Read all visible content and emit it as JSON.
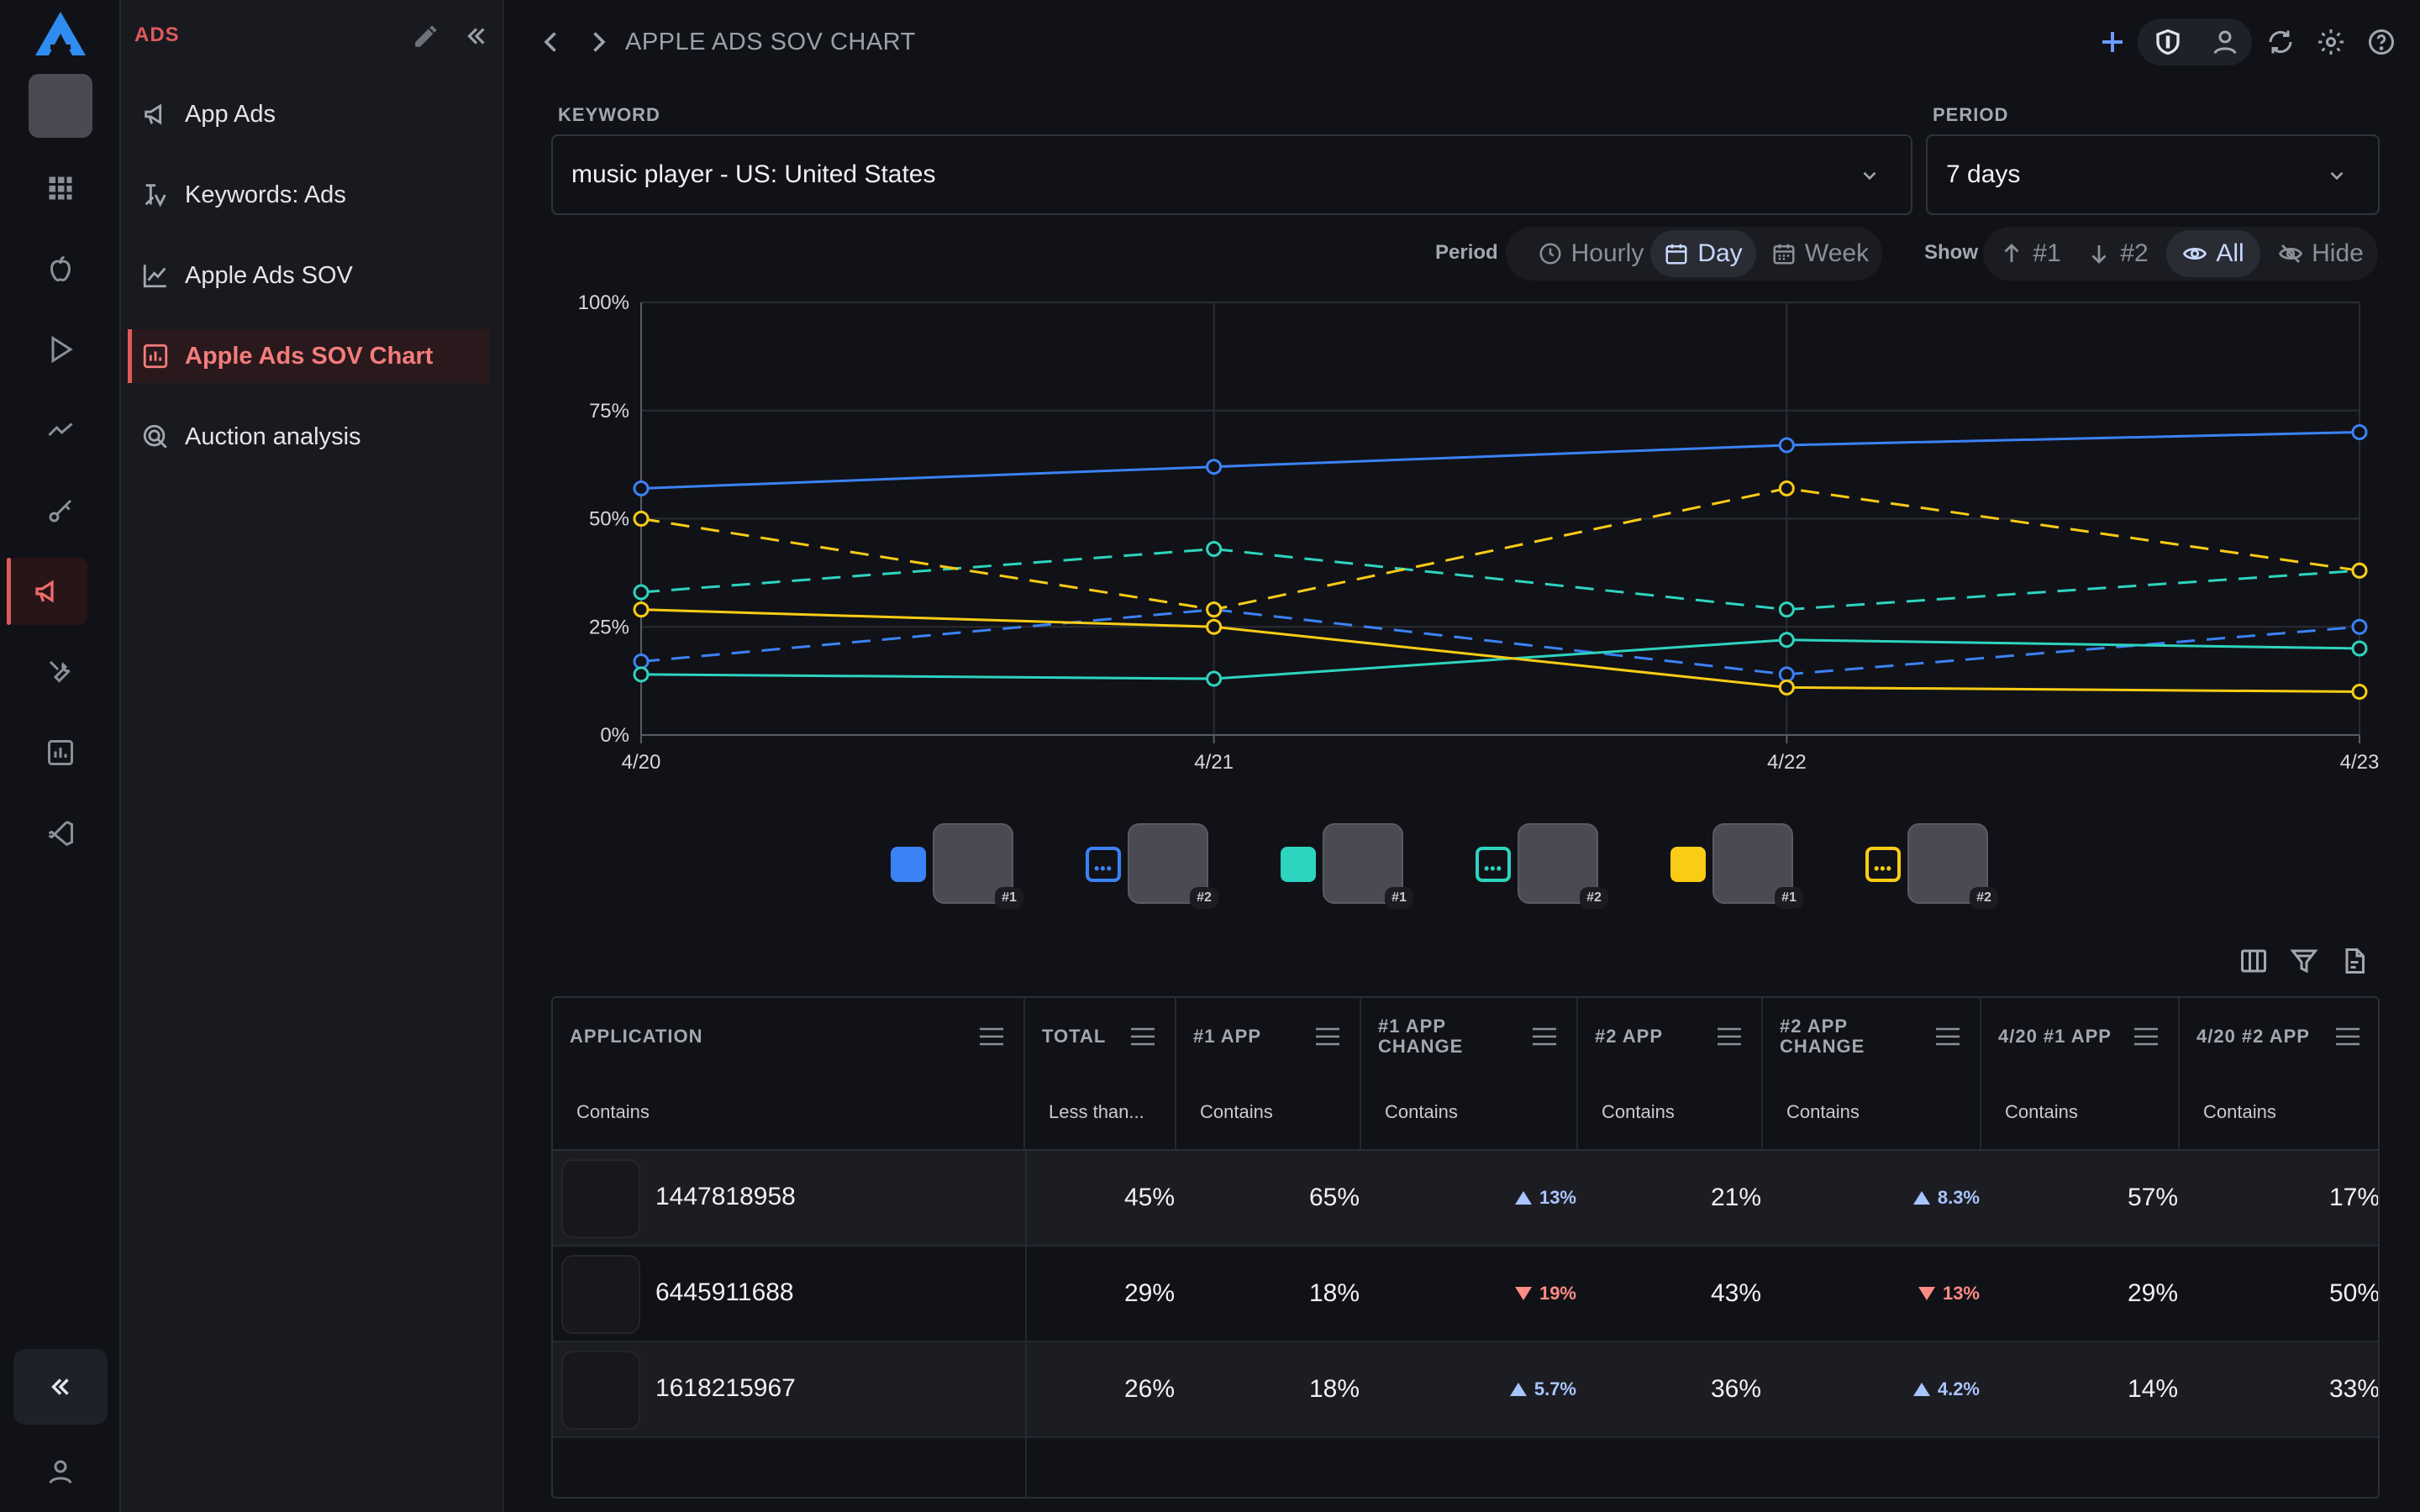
{
  "sidebar": {
    "section_title": "ADS",
    "items": [
      {
        "label": "App Ads",
        "icon": "megaphone-icon"
      },
      {
        "label": "Keywords: Ads",
        "icon": "keyword-ads-icon"
      },
      {
        "label": "Apple Ads SOV",
        "icon": "line-chart-icon"
      },
      {
        "label": "Apple Ads SOV Chart",
        "icon": "bar-chart-icon",
        "active": true
      },
      {
        "label": "Auction analysis",
        "icon": "auction-icon"
      }
    ]
  },
  "header": {
    "breadcrumb": "APPLE ADS SOV CHART",
    "icons": [
      "add-icon",
      "shield-icon",
      "user-icon",
      "refresh-icon",
      "gear-icon",
      "help-icon"
    ]
  },
  "filters": {
    "keyword": {
      "label": "KEYWORD",
      "value": "music player - US: United States"
    },
    "period": {
      "label": "PERIOD",
      "value": "7 days"
    }
  },
  "toggles": {
    "period_label": "Period",
    "period_options": [
      "Hourly",
      "Day",
      "Week"
    ],
    "period_selected": "Day",
    "show_label": "Show",
    "show_options": [
      "#1",
      "#2",
      "All",
      "Hide"
    ],
    "show_selected": "All"
  },
  "chart_data": {
    "type": "line",
    "x": [
      "4/20",
      "4/21",
      "4/22",
      "4/23"
    ],
    "ylim": [
      0,
      100
    ],
    "yticks": [
      "0%",
      "25%",
      "50%",
      "75%",
      "100%"
    ],
    "grid": true,
    "series": [
      {
        "color": "#3b82f6",
        "style": "solid",
        "values": [
          57,
          62,
          67,
          70
        ]
      },
      {
        "color": "#3b82f6",
        "style": "dashed",
        "values": [
          17,
          29,
          14,
          25
        ]
      },
      {
        "color": "#2dd4bf",
        "style": "solid",
        "values": [
          14,
          13,
          22,
          20
        ]
      },
      {
        "color": "#2dd4bf",
        "style": "dashed",
        "values": [
          33,
          43,
          29,
          38
        ]
      },
      {
        "color": "#facc15",
        "style": "solid",
        "values": [
          29,
          25,
          11,
          10
        ]
      },
      {
        "color": "#facc15",
        "style": "dashed",
        "values": [
          50,
          29,
          57,
          38
        ]
      }
    ]
  },
  "legend": [
    {
      "color": "#3b82f6",
      "style": "solid",
      "rank": "#1"
    },
    {
      "color": "#3b82f6",
      "style": "dashed",
      "rank": "#2"
    },
    {
      "color": "#2dd4bf",
      "style": "solid",
      "rank": "#1"
    },
    {
      "color": "#2dd4bf",
      "style": "dashed",
      "rank": "#2"
    },
    {
      "color": "#facc15",
      "style": "solid",
      "rank": "#1"
    },
    {
      "color": "#facc15",
      "style": "dashed",
      "rank": "#2"
    }
  ],
  "table": {
    "columns": [
      {
        "label": "APPLICATION",
        "filter": "Contains"
      },
      {
        "label": "TOTAL",
        "filter": "Less than..."
      },
      {
        "label": "#1 APP",
        "filter": "Contains"
      },
      {
        "label": "#1 APP CHANGE",
        "filter": "Contains"
      },
      {
        "label": "#2 APP",
        "filter": "Contains"
      },
      {
        "label": "#2 APP CHANGE",
        "filter": "Contains"
      },
      {
        "label": "4/20 #1 APP",
        "filter": "Contains"
      },
      {
        "label": "4/20 #2 APP",
        "filter": "Contains"
      }
    ],
    "rows": [
      {
        "app": "1447818958",
        "total": "45%",
        "app1": "65%",
        "app1_change": "13%",
        "app1_dir": "up",
        "app2": "21%",
        "app2_change": "8.3%",
        "app2_dir": "up",
        "d1": "57%",
        "d2": "17%"
      },
      {
        "app": "6445911688",
        "total": "29%",
        "app1": "18%",
        "app1_change": "19%",
        "app1_dir": "down",
        "app2": "43%",
        "app2_change": "13%",
        "app2_dir": "down",
        "d1": "29%",
        "d2": "50%"
      },
      {
        "app": "1618215967",
        "total": "26%",
        "app1": "18%",
        "app1_change": "5.7%",
        "app1_dir": "up",
        "app2": "36%",
        "app2_change": "4.2%",
        "app2_dir": "up",
        "d1": "14%",
        "d2": "33%"
      }
    ],
    "tool_icons": [
      "columns-icon",
      "filter-icon",
      "export-icon"
    ]
  },
  "colors": {
    "accent": "#e05a5a",
    "blue": "#3b82f6",
    "teal": "#2dd4bf",
    "yellow": "#facc15",
    "up": "#a9c4ff",
    "down": "#ff8b85"
  }
}
